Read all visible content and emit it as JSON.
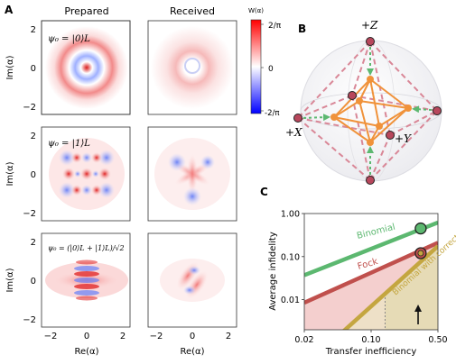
{
  "panel_labels": {
    "a": "A",
    "b": "B",
    "c": "C"
  },
  "panel_a": {
    "column_titles": [
      "Prepared",
      "Received"
    ],
    "ylabel": "Im(α)",
    "xlabel": "Re(α)",
    "x_ticks": [
      "−2",
      "0",
      "2"
    ],
    "y_ticks": [
      "2",
      "0",
      "−2"
    ],
    "colorbar": {
      "title": "W(α)",
      "top": "2/π",
      "mid": "0",
      "bottom": "-2/π"
    },
    "row_states": [
      "ψ₀ = |0⟩L",
      "ψ₀ = |1⟩L",
      "ψ₀ = (|0⟩L + |1⟩L)/√2"
    ]
  },
  "panel_b": {
    "axis_labels": {
      "z": "+Z",
      "x": "+X",
      "y": "+Y"
    }
  },
  "chart_data": {
    "type": "line",
    "xlabel": "Transfer inefficiency",
    "ylabel": "Average infidelity",
    "xscale": "log",
    "yscale": "log",
    "xlim": [
      0.02,
      0.5
    ],
    "ylim": [
      0.002,
      1.0
    ],
    "x_ticks": [
      "0.02",
      "0.10",
      "0.50"
    ],
    "y_ticks": [
      "1.00",
      "0.10",
      "0.01"
    ],
    "series": [
      {
        "name": "Binomial",
        "color": "#5cb870",
        "x": [
          0.02,
          0.5
        ],
        "y": [
          0.037,
          0.62
        ]
      },
      {
        "name": "Fock",
        "color": "#c0504d",
        "x": [
          0.02,
          0.5
        ],
        "y": [
          0.0085,
          0.21
        ]
      },
      {
        "name": "Binomial with correction",
        "color": "#c4a640",
        "x": [
          0.02,
          0.5
        ],
        "y": [
          0.00028,
          0.175
        ]
      }
    ],
    "markers": [
      {
        "x": 0.33,
        "y": 0.45,
        "color": "#5cb870"
      },
      {
        "x": 0.33,
        "y": 0.12,
        "color": "#c0504d"
      },
      {
        "x": 0.33,
        "y": 0.12,
        "color": "#c4a640"
      }
    ],
    "threshold_x": 0.14,
    "arrow_x": 0.31
  }
}
